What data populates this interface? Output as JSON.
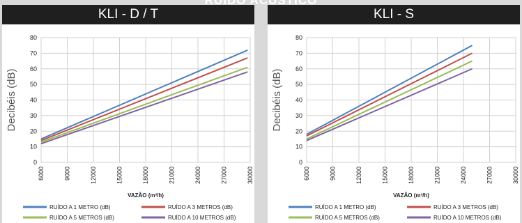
{
  "page_title": "RUÍDO ACÚSTICO",
  "chart_data": [
    {
      "type": "line",
      "title": "KLI - D / T",
      "xlabel": "VAZÃO (m³/h)",
      "ylabel": "Decibéis (dB)",
      "xlim": [
        6000,
        30000
      ],
      "ylim": [
        0,
        80
      ],
      "x_ticks": [
        "6000",
        "9000",
        "12000",
        "15000",
        "18000",
        "21000",
        "24000",
        "27000",
        "30000"
      ],
      "y_ticks": [
        "0",
        "10",
        "20",
        "30",
        "40",
        "50",
        "60",
        "70",
        "80"
      ],
      "grid": true,
      "legend_position": "bottom",
      "series": [
        {
          "name": "RUÍDO A 1 METRO (dB)",
          "color": "#4f81bd",
          "x": [
            6000,
            29700
          ],
          "y": [
            15,
            72
          ]
        },
        {
          "name": "RUÍDO A 3 METROS (dB)",
          "color": "#c0504d",
          "x": [
            6000,
            29700
          ],
          "y": [
            14,
            67
          ]
        },
        {
          "name": "RUÍDO A 5 METROS (dB)",
          "color": "#9bbb59",
          "x": [
            6000,
            29700
          ],
          "y": [
            13,
            61
          ]
        },
        {
          "name": "RUÍDO A 10 METROS (dB)",
          "color": "#8064a2",
          "x": [
            6000,
            29700
          ],
          "y": [
            12,
            58
          ]
        }
      ]
    },
    {
      "type": "line",
      "title": "KLI - S",
      "xlabel": "VAZÃO (m³/h)",
      "ylabel": "Decibéis (dB)",
      "xlim": [
        6000,
        30000
      ],
      "ylim": [
        0,
        80
      ],
      "x_ticks": [
        "6000",
        "9000",
        "12000",
        "15000",
        "18000",
        "21000",
        "24000",
        "27000",
        "30000"
      ],
      "y_ticks": [
        "0",
        "10",
        "20",
        "30",
        "40",
        "50",
        "60",
        "70",
        "80"
      ],
      "grid": true,
      "legend_position": "bottom",
      "series": [
        {
          "name": "RUÍDO A 1 METRO (dB)",
          "color": "#4f81bd",
          "x": [
            6000,
            25000
          ],
          "y": [
            18,
            75
          ]
        },
        {
          "name": "RUÍDO A 3 METROS (dB)",
          "color": "#c0504d",
          "x": [
            6000,
            25000
          ],
          "y": [
            17,
            70
          ]
        },
        {
          "name": "RUÍDO A 5 METROS (dB)",
          "color": "#9bbb59",
          "x": [
            6000,
            25000
          ],
          "y": [
            15,
            65
          ]
        },
        {
          "name": "RUÍDO A 10 METROS (dB)",
          "color": "#8064a2",
          "x": [
            6000,
            25000
          ],
          "y": [
            14,
            60
          ]
        }
      ]
    }
  ]
}
